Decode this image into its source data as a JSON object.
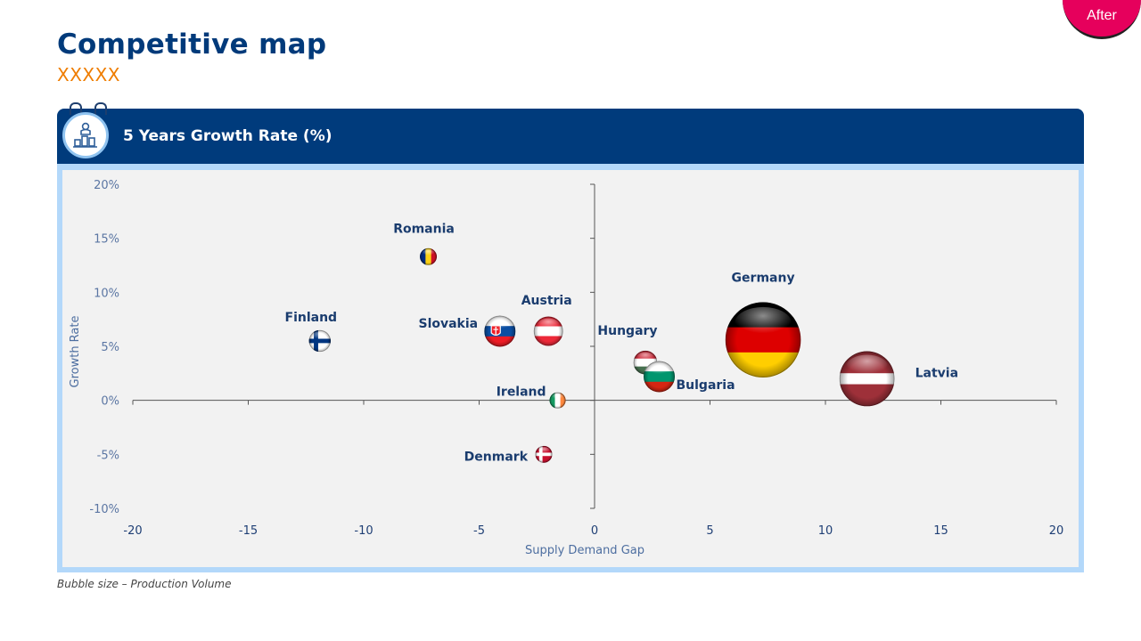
{
  "page": {
    "title": "Competitive map",
    "subtitle": "XXXXX",
    "badge": "After",
    "footnote": "Bubble size – Production Volume"
  },
  "panel": {
    "title": "5 Years Growth Rate (%)",
    "icon": "growth-chart-icon"
  },
  "colors": {
    "header": "#003b7c",
    "frame": "#b3d8fa",
    "plot_bg": "#f2f2f2",
    "title": "#003a7a",
    "subtitle": "#ef7d00",
    "badge": "#e6005c"
  },
  "chart_data": {
    "type": "scatter",
    "title": "5 Years Growth Rate (%)",
    "xlabel": "Supply Demand Gap",
    "ylabel": "Growth Rate",
    "xlim": [
      -20,
      20
    ],
    "ylim": [
      -10,
      20
    ],
    "x_ticks": [
      "-20",
      "-15",
      "-10",
      "-5",
      "0",
      "5",
      "10",
      "15",
      "20"
    ],
    "y_ticks": [
      "20%",
      "15%",
      "10%",
      "5%",
      "0%",
      "-5%",
      "-10%"
    ],
    "bubble_size_label": "Production Volume",
    "points": [
      {
        "name": "Romania",
        "x": -7.2,
        "y": 13.3,
        "size": 1,
        "flag": "romania"
      },
      {
        "name": "Finland",
        "x": -11.9,
        "y": 5.5,
        "size": 1.8,
        "flag": "finland"
      },
      {
        "name": "Slovakia",
        "x": -4.1,
        "y": 6.4,
        "size": 4,
        "flag": "slovakia"
      },
      {
        "name": "Austria",
        "x": -2.0,
        "y": 6.4,
        "size": 3.5,
        "flag": "austria"
      },
      {
        "name": "Hungary",
        "x": 2.2,
        "y": 3.5,
        "size": 2.2,
        "flag": "hungary"
      },
      {
        "name": "Bulgaria",
        "x": 2.8,
        "y": 2.2,
        "size": 4,
        "flag": "bulgaria"
      },
      {
        "name": "Germany",
        "x": 7.3,
        "y": 5.6,
        "size": 26,
        "flag": "germany"
      },
      {
        "name": "Latvia",
        "x": 11.8,
        "y": 2.0,
        "size": 13.5,
        "flag": "latvia"
      },
      {
        "name": "Ireland",
        "x": -1.6,
        "y": 0.0,
        "size": 0.9,
        "flag": "ireland"
      },
      {
        "name": "Denmark",
        "x": -2.2,
        "y": -5.0,
        "size": 1,
        "flag": "denmark"
      }
    ],
    "grid": false,
    "legend": "none"
  }
}
